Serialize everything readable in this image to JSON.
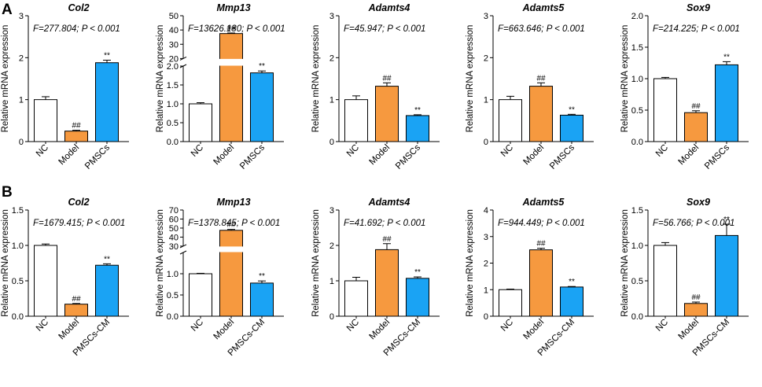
{
  "colors": {
    "nc": "#ffffff",
    "model": "#f6993f",
    "pmscs": "#1aa3f4",
    "stroke": "#000000"
  },
  "rows": [
    {
      "label": "A",
      "categories": [
        "NC",
        "Model",
        "PMSCs"
      ]
    },
    {
      "label": "B",
      "categories": [
        "NC",
        "Model",
        "PMSCs-CM"
      ]
    }
  ],
  "chart_data": [
    {
      "type": "bar",
      "row": "A",
      "title": "Col2",
      "stat": "F=277.804; P < 0.001",
      "ylabel": "Relative mRNA expression",
      "ylim": [
        0,
        3
      ],
      "yticks": [
        "0",
        "1",
        "2",
        "3"
      ],
      "categories": [
        "NC",
        "Model",
        "PMSCs"
      ],
      "values": [
        1.0,
        0.25,
        1.88
      ],
      "errors": [
        0.07,
        0.02,
        0.06
      ],
      "annotations": [
        "",
        "##",
        "**"
      ]
    },
    {
      "type": "bar",
      "row": "A",
      "title": "Mmp13",
      "stat": "F=13626.180; P < 0.001",
      "ylabel": "Relative mRNA expression",
      "axis_break": [
        2.0,
        20
      ],
      "yticks_lower": [
        "0.0",
        "0.5",
        "1.0",
        "1.5",
        "2.0"
      ],
      "yticks_upper": [
        "20",
        "30",
        "40",
        "50"
      ],
      "categories": [
        "NC",
        "Model",
        "PMSCs"
      ],
      "values": [
        1.0,
        37.5,
        1.82
      ],
      "errors": [
        0.03,
        0.4,
        0.05
      ],
      "annotations": [
        "",
        "##",
        "**"
      ]
    },
    {
      "type": "bar",
      "row": "A",
      "title": "Adamts4",
      "stat": "F=45.947; P < 0.001",
      "ylabel": "Relative mRNA expression",
      "ylim": [
        0,
        3
      ],
      "yticks": [
        "0",
        "1",
        "2",
        "3"
      ],
      "categories": [
        "NC",
        "Model",
        "PMSCs"
      ],
      "values": [
        1.0,
        1.32,
        0.62
      ],
      "errors": [
        0.09,
        0.08,
        0.02
      ],
      "annotations": [
        "",
        "##",
        "**"
      ]
    },
    {
      "type": "bar",
      "row": "A",
      "title": "Adamts5",
      "stat": "F=663.646; P < 0.001",
      "ylabel": "Relative mRNA expression",
      "ylim": [
        0,
        3
      ],
      "yticks": [
        "0",
        "1",
        "2",
        "3"
      ],
      "categories": [
        "NC",
        "Model",
        "PMSCs"
      ],
      "values": [
        1.0,
        1.32,
        0.63
      ],
      "errors": [
        0.08,
        0.08,
        0.02
      ],
      "annotations": [
        "",
        "##",
        "**"
      ]
    },
    {
      "type": "bar",
      "row": "A",
      "title": "Sox9",
      "stat": "F=214.225; P < 0.001",
      "ylabel": "Relative mRNA expression",
      "ylim": [
        0,
        2.0
      ],
      "yticks": [
        "0.0",
        "0.5",
        "1.0",
        "1.5",
        "2.0"
      ],
      "categories": [
        "NC",
        "Model",
        "PMSCs"
      ],
      "values": [
        1.0,
        0.46,
        1.22
      ],
      "errors": [
        0.02,
        0.03,
        0.05
      ],
      "annotations": [
        "",
        "##",
        "**"
      ]
    },
    {
      "type": "bar",
      "row": "B",
      "title": "Col2",
      "stat": "F=1679.415; P < 0.001",
      "ylabel": "Relative mRNA expression",
      "ylim": [
        0,
        1.5
      ],
      "yticks": [
        "0.0",
        "0.5",
        "1.0",
        "1.5"
      ],
      "categories": [
        "NC",
        "Model",
        "PMSCs-CM"
      ],
      "values": [
        1.0,
        0.17,
        0.72
      ],
      "errors": [
        0.02,
        0.01,
        0.02
      ],
      "annotations": [
        "",
        "##",
        "**"
      ]
    },
    {
      "type": "bar",
      "row": "B",
      "title": "Mmp13",
      "stat": "F=1378.845; P < 0.001",
      "ylabel": "Relative mRNA expression",
      "axis_break": [
        1.5,
        30
      ],
      "yticks_lower": [
        "0.0",
        "0.5",
        "1.0"
      ],
      "yticks_upper": [
        "30",
        "40",
        "50",
        "60",
        "70"
      ],
      "categories": [
        "NC",
        "Model",
        "PMSCs-CM"
      ],
      "values": [
        1.0,
        47.5,
        0.78
      ],
      "errors": [
        0.01,
        1.0,
        0.05
      ],
      "annotations": [
        "",
        "##",
        "**"
      ]
    },
    {
      "type": "bar",
      "row": "B",
      "title": "Adamts4",
      "stat": "F=41.692; P < 0.001",
      "ylabel": "Relative mRNA expression",
      "ylim": [
        0,
        3
      ],
      "yticks": [
        "0",
        "1",
        "2",
        "3"
      ],
      "categories": [
        "NC",
        "Model",
        "PMSCs-CM"
      ],
      "values": [
        1.0,
        1.88,
        1.07
      ],
      "errors": [
        0.1,
        0.17,
        0.04
      ],
      "annotations": [
        "",
        "##",
        "**"
      ]
    },
    {
      "type": "bar",
      "row": "B",
      "title": "Adamts5",
      "stat": "F=944.449; P < 0.001",
      "ylabel": "Relative mRNA expression",
      "ylim": [
        0,
        4
      ],
      "yticks": [
        "0",
        "1",
        "2",
        "3",
        "4"
      ],
      "categories": [
        "NC",
        "Model",
        "PMSCs-CM"
      ],
      "values": [
        1.0,
        2.5,
        1.1
      ],
      "errors": [
        0.02,
        0.06,
        0.02
      ],
      "annotations": [
        "",
        "##",
        "**"
      ]
    },
    {
      "type": "bar",
      "row": "B",
      "title": "Sox9",
      "stat": "F=56.766; P < 0.001",
      "ylabel": "Relative mRNA expression",
      "ylim": [
        0,
        1.5
      ],
      "yticks": [
        "0.0",
        "0.5",
        "1.0",
        "1.5"
      ],
      "categories": [
        "NC",
        "Model",
        "PMSCs-CM"
      ],
      "values": [
        1.0,
        0.18,
        1.14
      ],
      "errors": [
        0.04,
        0.02,
        0.16
      ],
      "annotations": [
        "",
        "##",
        "**"
      ]
    }
  ]
}
